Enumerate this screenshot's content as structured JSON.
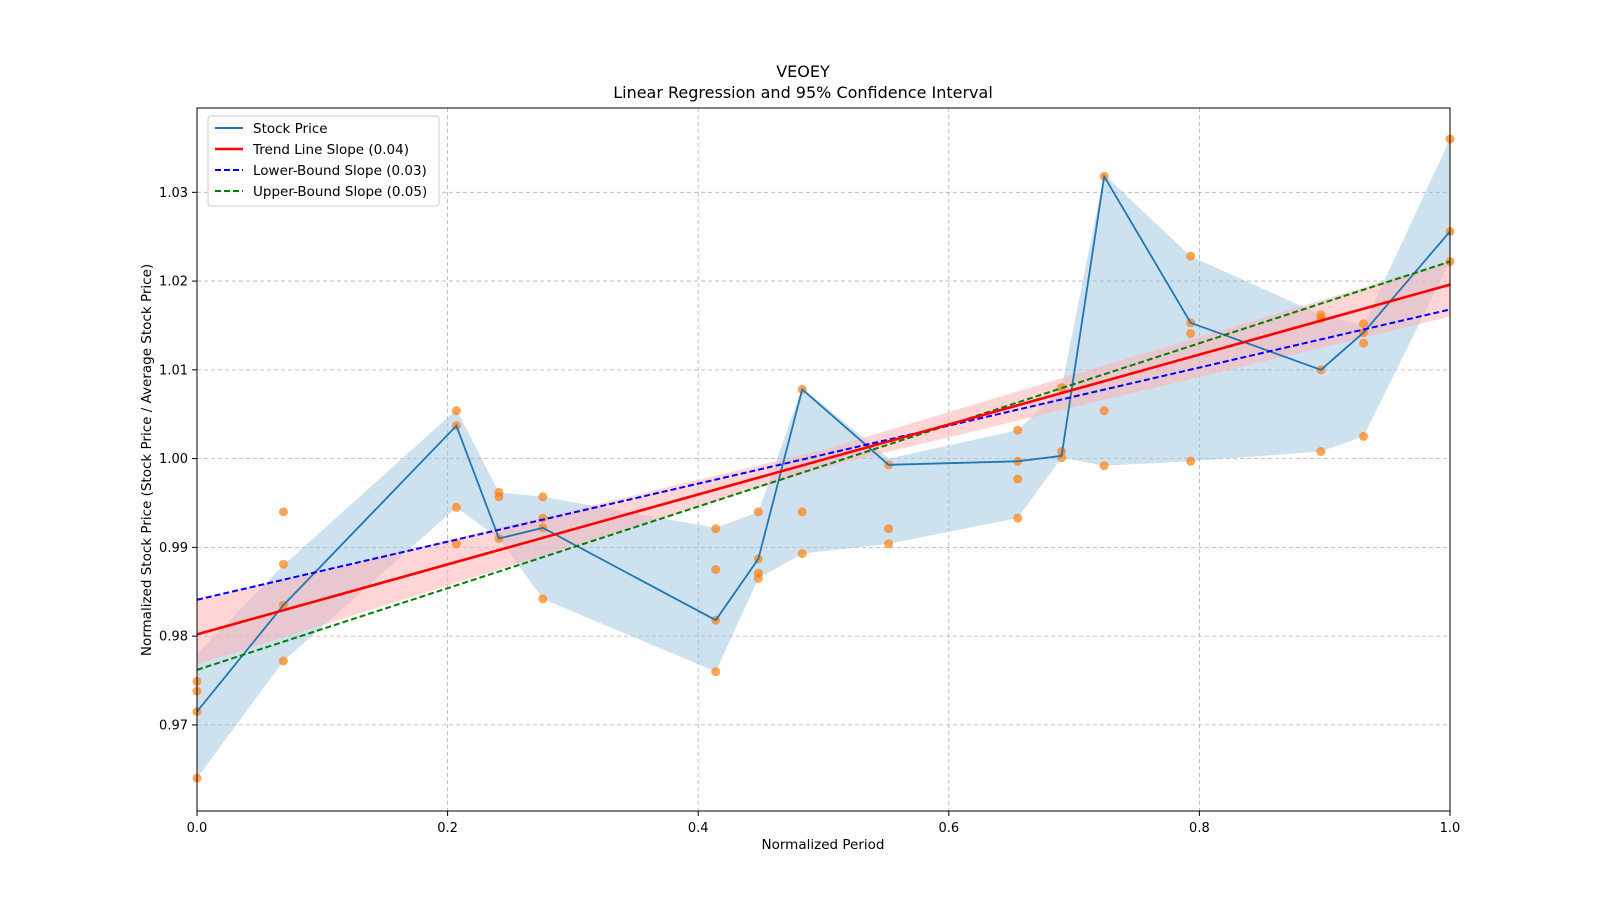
{
  "chart_data": {
    "type": "line",
    "title": "VEOEY",
    "subtitle": "Linear Regression and 95% Confidence Interval",
    "xlabel": "Normalized Period",
    "ylabel": "Normalized Stock Price (Stock Price / Average Stock Price)",
    "xlim": [
      0.0,
      1.0
    ],
    "ylim": [
      0.9603,
      1.0395
    ],
    "grid": true,
    "legend_position": "top-left",
    "x_ticks": [
      {
        "value": 0.0,
        "label": "0.0"
      },
      {
        "value": 0.2,
        "label": "0.2"
      },
      {
        "value": 0.4,
        "label": "0.4"
      },
      {
        "value": 0.6,
        "label": "0.6"
      },
      {
        "value": 0.8,
        "label": "0.8"
      },
      {
        "value": 1.0,
        "label": "1.0"
      }
    ],
    "y_ticks": [
      {
        "value": 0.97,
        "label": "0.97"
      },
      {
        "value": 0.98,
        "label": "0.98"
      },
      {
        "value": 0.99,
        "label": "0.99"
      },
      {
        "value": 1.0,
        "label": "1.00"
      },
      {
        "value": 1.01,
        "label": "1.01"
      },
      {
        "value": 1.02,
        "label": "1.02"
      },
      {
        "value": 1.03,
        "label": "1.03"
      }
    ],
    "colors": {
      "stock": "#1f77b4",
      "band": "#9ec3e0",
      "trend": "#ff0000",
      "trend_band": "#ffb3b3",
      "lower": "#0000ff",
      "upper": "#008000",
      "points": "#ff7f0e",
      "grid": "#b0b0b0"
    },
    "series": [
      {
        "name": "Stock Price",
        "x": [
          0.0,
          0.069,
          0.207,
          0.241,
          0.276,
          0.414,
          0.448,
          0.483,
          0.552,
          0.655,
          0.69,
          0.724,
          0.793,
          0.897,
          0.931,
          1.0
        ],
        "y": [
          0.9715,
          0.9835,
          1.0037,
          0.991,
          0.9922,
          0.9818,
          0.9887,
          1.0078,
          0.9993,
          0.9997,
          1.0003,
          1.0318,
          1.0153,
          1.01,
          1.0142,
          1.0256
        ]
      }
    ],
    "stock_band": {
      "x": [
        0.0,
        0.069,
        0.207,
        0.241,
        0.276,
        0.414,
        0.448,
        0.483,
        0.552,
        0.655,
        0.69,
        0.724,
        0.793,
        0.897,
        0.931,
        1.0
      ],
      "upper": [
        0.978,
        0.988,
        1.0055,
        0.9962,
        0.9957,
        0.9922,
        0.994,
        1.008,
        1.0,
        1.0032,
        1.008,
        1.032,
        1.0228,
        1.0162,
        1.015,
        1.036
      ],
      "lower": [
        0.964,
        0.9772,
        0.9945,
        0.991,
        0.9842,
        0.976,
        0.9865,
        0.9893,
        0.9904,
        0.9933,
        1.0001,
        0.9992,
        0.9997,
        1.0008,
        1.0025,
        1.0222
      ]
    },
    "trend_line": {
      "name": "Trend Line Slope (0.04)",
      "intercept": 0.9802,
      "slope": 0.0394
    },
    "trend_band": {
      "x": [
        0.0,
        0.5,
        1.0
      ],
      "upper": [
        0.984,
        1.001,
        1.0222
      ],
      "lower": [
        0.9768,
        0.999,
        1.016
      ]
    },
    "lower_bound_line": {
      "name": "Lower-Bound Slope (0.03)",
      "intercept": 0.9841,
      "slope": 0.0327
    },
    "upper_bound_line": {
      "name": "Upper-Bound Slope (0.05)",
      "intercept": 0.9762,
      "slope": 0.046
    },
    "scatter_points": [
      [
        0.0,
        0.964
      ],
      [
        0.0,
        0.9715
      ],
      [
        0.0,
        0.9738
      ],
      [
        0.0,
        0.9749
      ],
      [
        0.069,
        0.9772
      ],
      [
        0.069,
        0.9835
      ],
      [
        0.069,
        0.9881
      ],
      [
        0.069,
        0.994
      ],
      [
        0.207,
        0.9904
      ],
      [
        0.207,
        0.9945
      ],
      [
        0.207,
        1.0037
      ],
      [
        0.207,
        1.0054
      ],
      [
        0.241,
        0.991
      ],
      [
        0.241,
        0.9957
      ],
      [
        0.241,
        0.9962
      ],
      [
        0.276,
        0.9842
      ],
      [
        0.276,
        0.9922
      ],
      [
        0.276,
        0.9933
      ],
      [
        0.276,
        0.9957
      ],
      [
        0.414,
        0.976
      ],
      [
        0.414,
        0.9818
      ],
      [
        0.414,
        0.9875
      ],
      [
        0.414,
        0.9921
      ],
      [
        0.448,
        0.9865
      ],
      [
        0.448,
        0.9871
      ],
      [
        0.448,
        0.9887
      ],
      [
        0.448,
        0.994
      ],
      [
        0.483,
        0.9893
      ],
      [
        0.483,
        0.994
      ],
      [
        0.483,
        1.0078
      ],
      [
        0.552,
        0.9904
      ],
      [
        0.552,
        0.9921
      ],
      [
        0.552,
        0.9993
      ],
      [
        0.655,
        0.9933
      ],
      [
        0.655,
        0.9977
      ],
      [
        0.655,
        0.9997
      ],
      [
        0.655,
        1.0032
      ],
      [
        0.69,
        1.0001
      ],
      [
        0.69,
        1.0008
      ],
      [
        0.69,
        1.008
      ],
      [
        0.724,
        0.9992
      ],
      [
        0.724,
        1.0054
      ],
      [
        0.724,
        1.0318
      ],
      [
        0.793,
        0.9997
      ],
      [
        0.793,
        1.0141
      ],
      [
        0.793,
        1.0153
      ],
      [
        0.793,
        1.0228
      ],
      [
        0.897,
        1.0008
      ],
      [
        0.897,
        1.01
      ],
      [
        0.897,
        1.0158
      ],
      [
        0.897,
        1.0162
      ],
      [
        0.931,
        1.0025
      ],
      [
        0.931,
        1.013
      ],
      [
        0.931,
        1.0142
      ],
      [
        0.931,
        1.0152
      ],
      [
        1.0,
        1.0222
      ],
      [
        1.0,
        1.0256
      ],
      [
        1.0,
        1.036
      ]
    ]
  }
}
